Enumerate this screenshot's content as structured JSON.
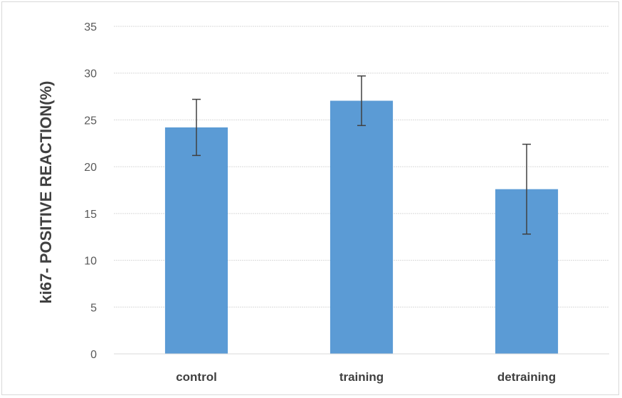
{
  "chart_data": {
    "type": "bar",
    "title": "",
    "xlabel": "",
    "ylabel": "ki67- POSITIVE REACTION(%)",
    "categories": [
      "control",
      "training",
      "detraining"
    ],
    "series": [
      {
        "values": [
          24.2,
          27.05,
          17.6
        ],
        "error_low": [
          21.2,
          24.4,
          12.8
        ],
        "error_high": [
          27.2,
          29.7,
          22.4
        ]
      }
    ],
    "ylim": [
      0,
      35
    ],
    "yticks": [
      "0",
      "5",
      "10",
      "15",
      "20",
      "25",
      "30",
      "35"
    ],
    "grid": true,
    "legend": "none",
    "colors": {
      "bar": "#5b9bd5",
      "grid": "#d9d9d9",
      "error": "#404040"
    }
  }
}
